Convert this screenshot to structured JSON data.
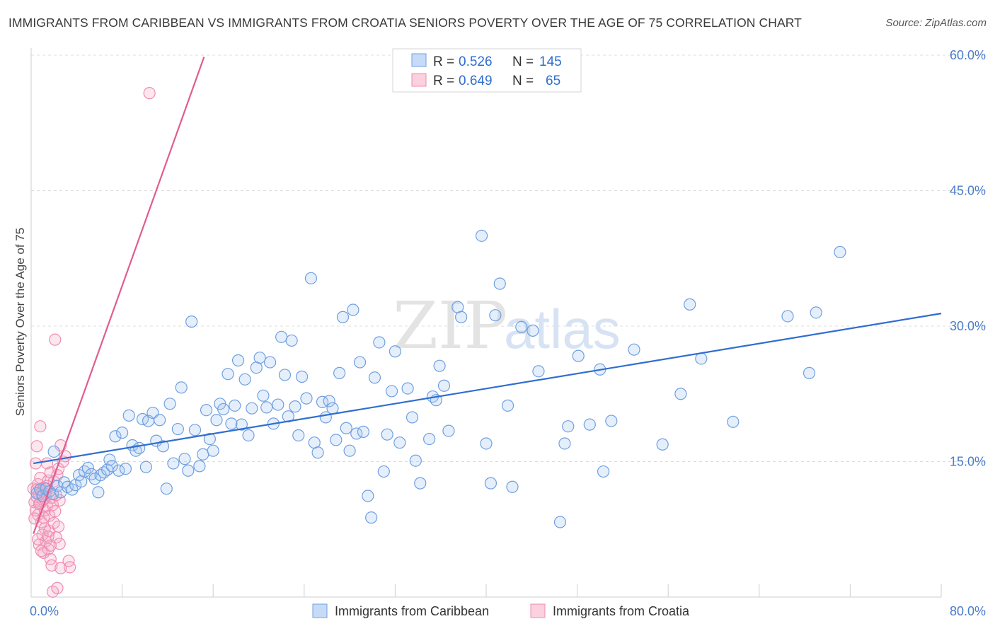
{
  "title": "IMMIGRANTS FROM CARIBBEAN VS IMMIGRANTS FROM CROATIA SENIORS POVERTY OVER THE AGE OF 75 CORRELATION CHART",
  "source": "Source: ZipAtlas.com",
  "watermark": {
    "zip": "ZIP",
    "atlas": "atlas"
  },
  "colors": {
    "blue": "#6f9fe0",
    "blue_line": "#2f6dd1",
    "pink": "#f08cb0",
    "pink_line": "#e05c8f",
    "tick": "#4a7cc9"
  },
  "legend": {
    "rows": [
      {
        "r_label": "R =",
        "r_value": "0.526",
        "n_label": "N =",
        "n_value": "145"
      },
      {
        "r_label": "R =",
        "r_value": "0.649",
        "n_label": "N =",
        "n_value": "65"
      }
    ]
  },
  "chart_data": {
    "type": "scatter",
    "xlabel": "",
    "ylabel": "Seniors Poverty Over the Age of 75",
    "xlim": [
      0,
      80
    ],
    "ylim": [
      0,
      60
    ],
    "x_tick_labels": {
      "min": "0.0%",
      "max": "80.0%"
    },
    "y_ticks": [
      {
        "value": 15,
        "label": "15.0%"
      },
      {
        "value": 30,
        "label": "30.0%"
      },
      {
        "value": 45,
        "label": "45.0%"
      },
      {
        "value": 60,
        "label": "60.0%"
      }
    ],
    "grid": true,
    "legend_position": "bottom",
    "series": [
      {
        "name": "Immigrants from Caribbean",
        "color": "#6f9fe0",
        "trend": {
          "x": [
            0.2,
            80
          ],
          "y": [
            14.8,
            31.4
          ]
        },
        "points": [
          [
            0.5,
            11.5
          ],
          [
            0.8,
            11.9
          ],
          [
            1.0,
            11.2
          ],
          [
            1.3,
            12.0
          ],
          [
            1.6,
            11.7
          ],
          [
            1.9,
            11.4
          ],
          [
            2.0,
            16.1
          ],
          [
            2.3,
            12.3
          ],
          [
            2.6,
            11.6
          ],
          [
            2.9,
            12.7
          ],
          [
            3.2,
            12.2
          ],
          [
            3.6,
            11.9
          ],
          [
            3.9,
            12.4
          ],
          [
            4.2,
            13.5
          ],
          [
            4.4,
            12.8
          ],
          [
            4.7,
            13.9
          ],
          [
            5.0,
            14.3
          ],
          [
            5.3,
            13.6
          ],
          [
            5.6,
            13.1
          ],
          [
            5.9,
            11.6
          ],
          [
            6.1,
            13.5
          ],
          [
            6.4,
            13.8
          ],
          [
            6.7,
            14.1
          ],
          [
            6.9,
            15.2
          ],
          [
            7.1,
            14.5
          ],
          [
            7.4,
            17.8
          ],
          [
            7.7,
            14.0
          ],
          [
            8.0,
            18.2
          ],
          [
            8.3,
            14.2
          ],
          [
            8.6,
            20.1
          ],
          [
            8.9,
            16.8
          ],
          [
            9.2,
            16.2
          ],
          [
            9.5,
            16.5
          ],
          [
            9.8,
            19.7
          ],
          [
            10.1,
            14.4
          ],
          [
            10.3,
            19.5
          ],
          [
            10.7,
            20.4
          ],
          [
            11.0,
            17.3
          ],
          [
            11.3,
            19.6
          ],
          [
            11.6,
            16.7
          ],
          [
            11.9,
            12.0
          ],
          [
            12.2,
            21.4
          ],
          [
            12.5,
            14.8
          ],
          [
            12.9,
            18.6
          ],
          [
            13.2,
            23.2
          ],
          [
            13.5,
            15.3
          ],
          [
            13.8,
            14.0
          ],
          [
            14.1,
            30.5
          ],
          [
            14.4,
            18.5
          ],
          [
            14.8,
            14.5
          ],
          [
            15.1,
            15.8
          ],
          [
            15.4,
            20.7
          ],
          [
            15.7,
            17.5
          ],
          [
            16.0,
            16.2
          ],
          [
            16.3,
            19.6
          ],
          [
            16.6,
            21.4
          ],
          [
            16.9,
            20.8
          ],
          [
            17.3,
            24.7
          ],
          [
            17.6,
            19.2
          ],
          [
            17.9,
            21.2
          ],
          [
            18.2,
            26.2
          ],
          [
            18.5,
            19.1
          ],
          [
            18.8,
            24.1
          ],
          [
            19.1,
            17.9
          ],
          [
            19.4,
            20.9
          ],
          [
            19.8,
            25.4
          ],
          [
            20.1,
            26.5
          ],
          [
            20.4,
            22.3
          ],
          [
            20.7,
            21.0
          ],
          [
            21.0,
            26.0
          ],
          [
            21.3,
            19.2
          ],
          [
            21.7,
            21.3
          ],
          [
            22.0,
            28.8
          ],
          [
            22.3,
            24.6
          ],
          [
            22.6,
            20.0
          ],
          [
            22.9,
            28.4
          ],
          [
            23.2,
            21.1
          ],
          [
            23.5,
            17.9
          ],
          [
            23.8,
            24.4
          ],
          [
            24.2,
            22.0
          ],
          [
            24.6,
            35.3
          ],
          [
            24.9,
            17.1
          ],
          [
            25.2,
            16.0
          ],
          [
            25.6,
            21.6
          ],
          [
            25.9,
            19.9
          ],
          [
            26.2,
            21.7
          ],
          [
            26.5,
            20.9
          ],
          [
            26.8,
            17.4
          ],
          [
            27.1,
            24.8
          ],
          [
            27.4,
            31.0
          ],
          [
            27.7,
            18.7
          ],
          [
            28.0,
            16.2
          ],
          [
            28.3,
            31.8
          ],
          [
            28.6,
            18.1
          ],
          [
            28.9,
            26.0
          ],
          [
            29.2,
            18.3
          ],
          [
            29.6,
            11.2
          ],
          [
            29.9,
            8.8
          ],
          [
            30.2,
            24.3
          ],
          [
            30.6,
            28.2
          ],
          [
            31.0,
            13.9
          ],
          [
            31.3,
            18.0
          ],
          [
            31.7,
            22.8
          ],
          [
            32.0,
            27.2
          ],
          [
            32.4,
            17.1
          ],
          [
            33.1,
            23.1
          ],
          [
            33.5,
            19.9
          ],
          [
            33.8,
            15.1
          ],
          [
            34.2,
            12.6
          ],
          [
            35.0,
            17.5
          ],
          [
            35.3,
            22.2
          ],
          [
            35.6,
            21.8
          ],
          [
            35.9,
            25.6
          ],
          [
            36.3,
            23.4
          ],
          [
            36.7,
            18.4
          ],
          [
            37.5,
            32.1
          ],
          [
            37.8,
            31.0
          ],
          [
            39.6,
            40.0
          ],
          [
            40.0,
            17.0
          ],
          [
            40.4,
            12.6
          ],
          [
            40.8,
            31.2
          ],
          [
            41.2,
            34.7
          ],
          [
            41.9,
            21.2
          ],
          [
            42.3,
            12.2
          ],
          [
            43.1,
            29.9
          ],
          [
            44.1,
            29.5
          ],
          [
            44.6,
            25.0
          ],
          [
            46.5,
            8.3
          ],
          [
            46.9,
            17.0
          ],
          [
            47.2,
            18.9
          ],
          [
            48.1,
            26.7
          ],
          [
            50.0,
            25.2
          ],
          [
            49.1,
            19.1
          ],
          [
            50.3,
            13.9
          ],
          [
            51.0,
            19.5
          ],
          [
            53.0,
            27.4
          ],
          [
            55.5,
            16.9
          ],
          [
            57.1,
            22.5
          ],
          [
            57.9,
            32.4
          ],
          [
            58.9,
            26.4
          ],
          [
            61.7,
            19.4
          ],
          [
            66.5,
            31.1
          ],
          [
            68.4,
            24.8
          ],
          [
            69.0,
            31.5
          ],
          [
            71.1,
            38.2
          ]
        ]
      },
      {
        "name": "Immigrants from Croatia",
        "color": "#f08cb0",
        "trend": {
          "x": [
            0.2,
            15.2
          ],
          "y": [
            7.0,
            59.8
          ]
        },
        "points": [
          [
            0.2,
            12.0
          ],
          [
            0.3,
            10.5
          ],
          [
            0.4,
            14.8
          ],
          [
            0.4,
            9.6
          ],
          [
            0.5,
            16.7
          ],
          [
            0.5,
            11.1
          ],
          [
            0.6,
            12.5
          ],
          [
            0.6,
            9.1
          ],
          [
            0.7,
            10.3
          ],
          [
            0.7,
            5.8
          ],
          [
            0.8,
            18.9
          ],
          [
            0.8,
            13.2
          ],
          [
            0.9,
            11.6
          ],
          [
            0.9,
            8.3
          ],
          [
            1.0,
            10.8
          ],
          [
            1.0,
            6.9
          ],
          [
            1.1,
            12.1
          ],
          [
            1.1,
            4.9
          ],
          [
            1.2,
            9.6
          ],
          [
            1.2,
            7.6
          ],
          [
            1.3,
            11.4
          ],
          [
            1.3,
            6.2
          ],
          [
            1.4,
            14.8
          ],
          [
            1.4,
            10.1
          ],
          [
            1.5,
            12.9
          ],
          [
            1.5,
            5.3
          ],
          [
            1.6,
            9.0
          ],
          [
            1.6,
            7.3
          ],
          [
            1.7,
            13.8
          ],
          [
            1.7,
            4.2
          ],
          [
            1.8,
            11.0
          ],
          [
            1.8,
            3.5
          ],
          [
            1.9,
            10.2
          ],
          [
            1.9,
            0.6
          ],
          [
            2.0,
            12.8
          ],
          [
            2.0,
            8.2
          ],
          [
            2.1,
            28.5
          ],
          [
            2.1,
            9.5
          ],
          [
            2.2,
            11.3
          ],
          [
            2.2,
            6.6
          ],
          [
            2.3,
            13.5
          ],
          [
            2.3,
            1.0
          ],
          [
            2.4,
            14.2
          ],
          [
            2.4,
            7.8
          ],
          [
            2.5,
            10.7
          ],
          [
            2.5,
            5.9
          ],
          [
            2.6,
            16.8
          ],
          [
            2.6,
            3.2
          ],
          [
            0.5,
            11.9
          ],
          [
            0.8,
            10.4
          ],
          [
            1.0,
            11.8
          ],
          [
            1.2,
            10.9
          ],
          [
            0.6,
            6.4
          ],
          [
            0.9,
            5.1
          ],
          [
            1.5,
            6.7
          ],
          [
            0.3,
            8.7
          ],
          [
            1.1,
            8.8
          ],
          [
            1.7,
            5.7
          ],
          [
            2.8,
            15.0
          ],
          [
            3.0,
            15.6
          ],
          [
            3.3,
            4.0
          ],
          [
            3.4,
            3.3
          ],
          [
            1.4,
            12.3
          ],
          [
            10.4,
            55.8
          ],
          [
            0.7,
            11.4
          ]
        ]
      }
    ]
  }
}
